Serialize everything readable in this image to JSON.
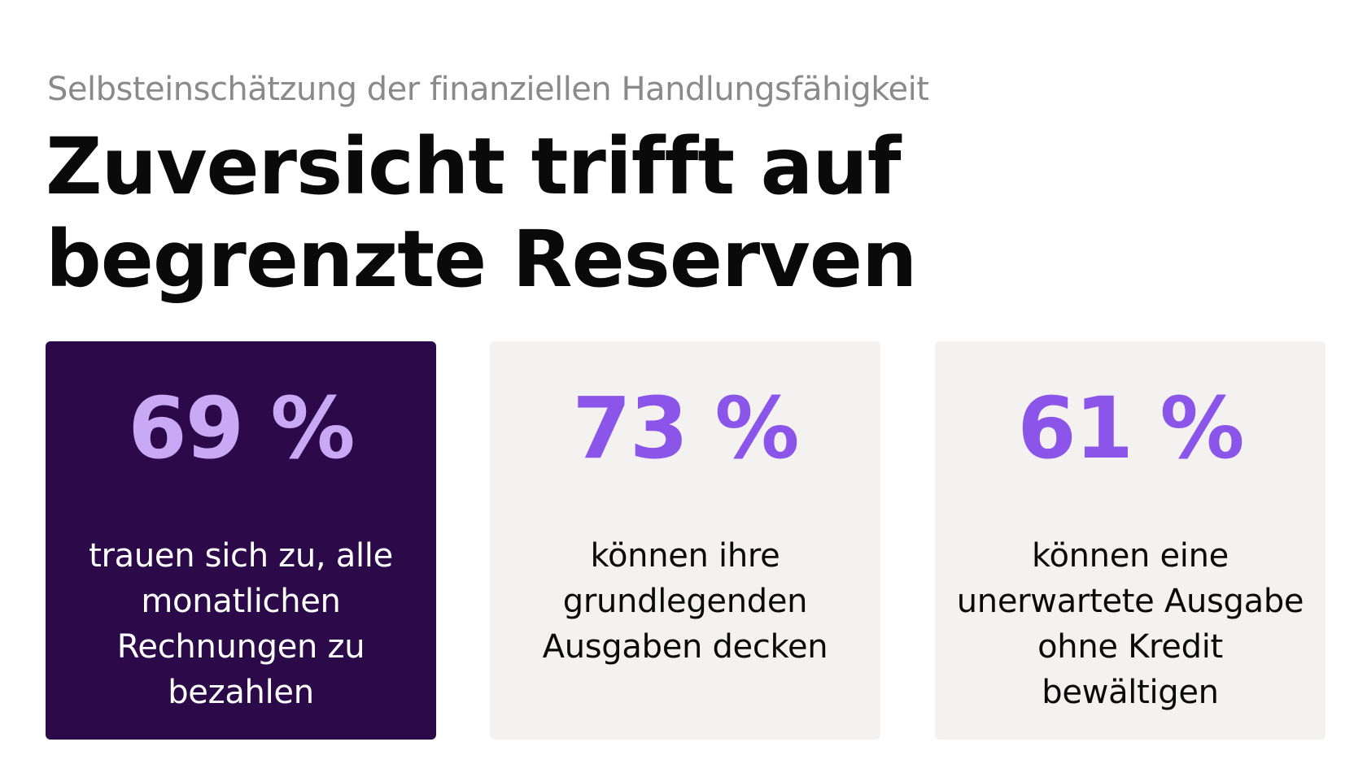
{
  "header": {
    "subtitle": "Selbsteinschätzung der finanziellen Handlungsfähigkeit",
    "title_lines": [
      "Zuversicht trifft auf",
      "begrenzte Reserven"
    ]
  },
  "cards": [
    {
      "value": "69 %",
      "lines": [
        "trauen sich zu, alle",
        "monatlichen",
        "Rechnungen zu",
        "bezahlen"
      ]
    },
    {
      "value": "73 %",
      "lines": [
        "können ihre",
        "grundlegenden",
        "Ausgaben decken"
      ]
    },
    {
      "value": "61 %",
      "lines": [
        "können eine",
        "unerwartete Ausgabe",
        "ohne Kredit",
        "bewältigen"
      ]
    }
  ],
  "colors": {
    "highlight_card_bg": "#2c0a4a",
    "card_bg": "#f3f2f1",
    "accent_purple": "#8a55e8",
    "accent_light_purple": "#c9a8f5",
    "subtitle_gray": "#8a8a8a"
  }
}
